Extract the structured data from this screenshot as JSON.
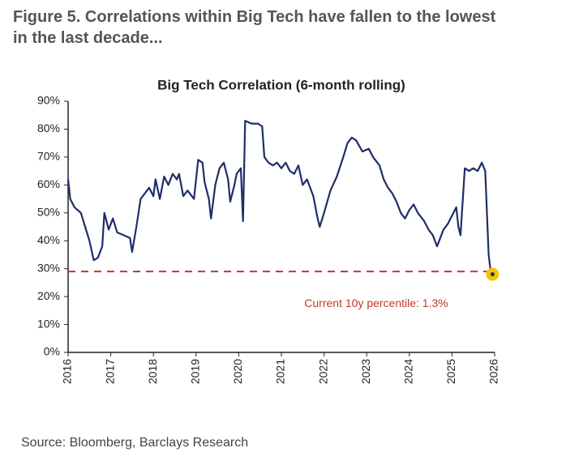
{
  "figure_title": "Figure 5. Correlations within Big Tech have fallen to the lowest in the last decade...",
  "source": "Source: Bloomberg, Barclays Research",
  "chart_data": {
    "type": "line",
    "title": "Big Tech Correlation (6-month rolling)",
    "x": [
      2016.0,
      2016.05,
      2016.15,
      2016.3,
      2016.4,
      2016.5,
      2016.6,
      2016.7,
      2016.8,
      2016.85,
      2016.95,
      2017.05,
      2017.15,
      2017.3,
      2017.45,
      2017.5,
      2017.6,
      2017.7,
      2017.8,
      2017.9,
      2018.0,
      2018.05,
      2018.15,
      2018.25,
      2018.35,
      2018.45,
      2018.55,
      2018.6,
      2018.7,
      2018.8,
      2018.95,
      2019.05,
      2019.15,
      2019.2,
      2019.3,
      2019.35,
      2019.45,
      2019.55,
      2019.65,
      2019.75,
      2019.8,
      2019.9,
      2019.95,
      2020.05,
      2020.1,
      2020.15,
      2020.3,
      2020.45,
      2020.55,
      2020.6,
      2020.7,
      2020.8,
      2020.9,
      2021.0,
      2021.1,
      2021.2,
      2021.3,
      2021.4,
      2021.5,
      2021.6,
      2021.75,
      2021.85,
      2021.9,
      2022.0,
      2022.15,
      2022.3,
      2022.45,
      2022.55,
      2022.65,
      2022.75,
      2022.9,
      2023.05,
      2023.15,
      2023.3,
      2023.4,
      2023.5,
      2023.6,
      2023.7,
      2023.8,
      2023.9,
      2024.0,
      2024.1,
      2024.2,
      2024.35,
      2024.45,
      2024.55,
      2024.65,
      2024.7,
      2024.8,
      2024.9,
      2025.0,
      2025.1,
      2025.15,
      2025.2,
      2025.3,
      2025.4,
      2025.5,
      2025.6,
      2025.7,
      2025.78,
      2025.82,
      2025.86,
      2025.9,
      2025.95
    ],
    "series": [
      {
        "name": "Big Tech Correlation",
        "color": "#1f2d6b",
        "values": [
          62,
          55,
          52,
          50,
          45,
          40,
          33,
          34,
          38,
          50,
          44,
          48,
          43,
          42,
          41,
          36,
          45,
          55,
          57,
          59,
          56,
          62,
          55,
          63,
          60,
          64,
          62,
          64,
          56,
          58,
          55,
          69,
          68,
          61,
          55,
          48,
          60,
          66,
          68,
          62,
          54,
          60,
          64,
          66,
          47,
          83,
          82,
          82,
          81,
          70,
          68,
          67,
          68,
          66,
          68,
          65,
          64,
          67,
          60,
          62,
          56,
          48,
          45,
          50,
          58,
          63,
          70,
          75,
          77,
          76,
          72,
          73,
          70,
          67,
          62,
          59,
          57,
          54,
          50,
          48,
          51,
          53,
          50,
          47,
          44,
          42,
          38,
          40,
          44,
          46,
          49,
          52,
          45,
          42,
          66,
          65,
          66,
          65,
          68,
          65,
          50,
          35,
          30,
          28
        ]
      }
    ],
    "xlim": [
      2016,
      2026
    ],
    "xticks": [
      2016,
      2017,
      2018,
      2019,
      2020,
      2021,
      2022,
      2023,
      2024,
      2025,
      2026
    ],
    "ylim": [
      0,
      90
    ],
    "yticks": [
      {
        "value": 0,
        "label": "0%"
      },
      {
        "value": 10,
        "label": "10%"
      },
      {
        "value": 20,
        "label": "20%"
      },
      {
        "value": 30,
        "label": "30%"
      },
      {
        "value": 40,
        "label": "40%"
      },
      {
        "value": 50,
        "label": "50%"
      },
      {
        "value": 60,
        "label": "60%"
      },
      {
        "value": 70,
        "label": "70%"
      },
      {
        "value": 80,
        "label": "80%"
      },
      {
        "value": 90,
        "label": "90%"
      }
    ],
    "reference_line": {
      "value": 29,
      "color": "#c0392b",
      "label": "Current 10y percentile: 1.3%"
    },
    "highlight_color": "#f5c400",
    "grid": false
  }
}
